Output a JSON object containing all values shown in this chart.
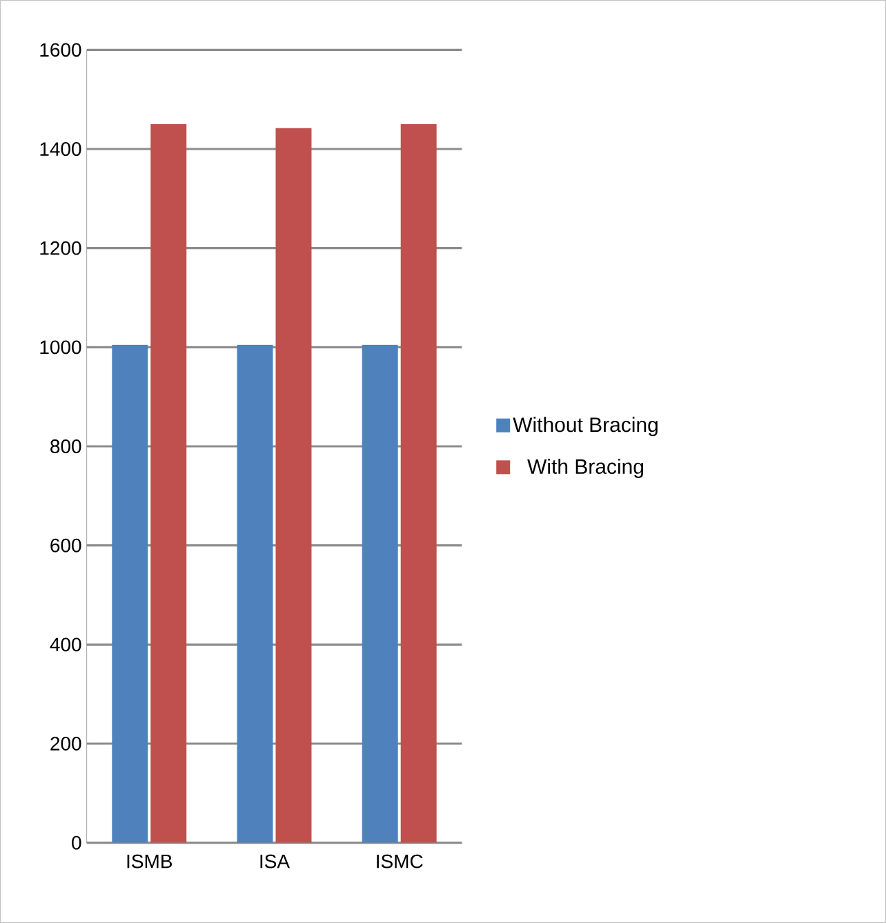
{
  "chart_data": {
    "type": "bar",
    "categories": [
      "ISMB",
      "ISA",
      "ISMC"
    ],
    "series": [
      {
        "name": "Without Bracing",
        "color": "#4f81bd",
        "values": [
          1005,
          1005,
          1005
        ]
      },
      {
        "name": "With Bracing",
        "color": "#c0504d",
        "values": [
          1450,
          1442,
          1450
        ]
      }
    ],
    "ylim": [
      0,
      1600
    ],
    "yticks": [
      0,
      200,
      400,
      600,
      800,
      1000,
      1200,
      1400,
      1600
    ],
    "grid": "y",
    "legend": "right"
  }
}
